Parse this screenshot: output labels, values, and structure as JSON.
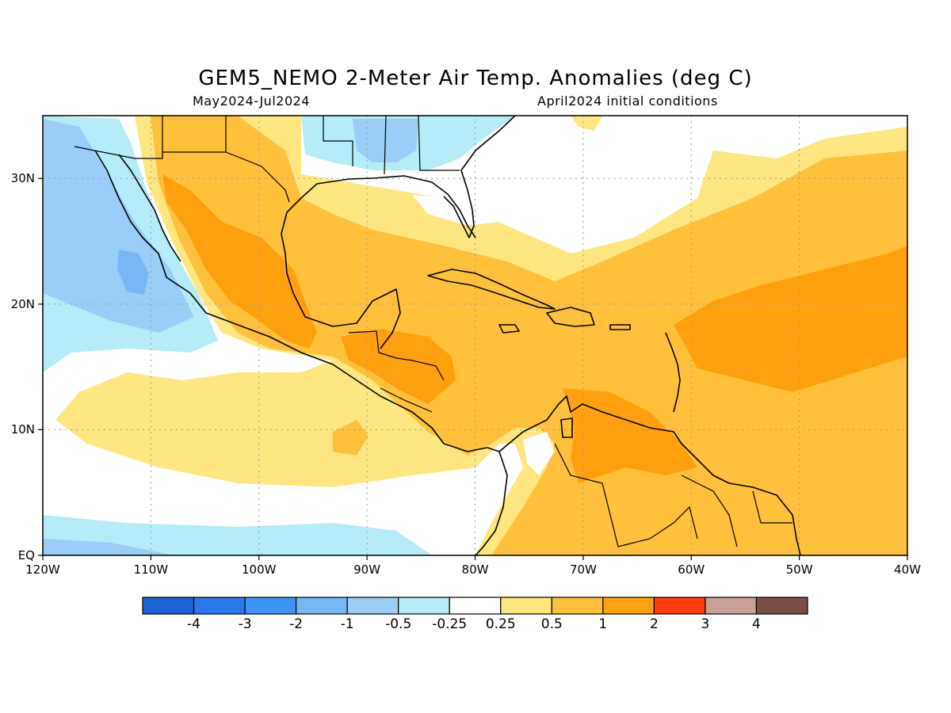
{
  "title": "GEM5_NEMO 2-Meter Air Temp. Anomalies (deg C)",
  "subtitle_left": "May2024-Jul2024",
  "subtitle_right": "April2024 initial conditions",
  "map": {
    "lon_range": [
      -120,
      -40
    ],
    "lat_range": [
      0,
      35
    ],
    "lon_ticks": [
      "120W",
      "110W",
      "100W",
      "90W",
      "80W",
      "70W",
      "60W",
      "50W",
      "40W"
    ],
    "lat_ticks": [
      "EQ",
      "10N",
      "20N",
      "30N"
    ],
    "grid": "dotted"
  },
  "colorbar": {
    "labels": [
      "-4",
      "-3",
      "-2",
      "-1",
      "-0.5",
      "-0.25",
      "0.25",
      "0.5",
      "1",
      "2",
      "3",
      "4"
    ],
    "colors": [
      "#1c63d6",
      "#2a79ea",
      "#3d94f2",
      "#77b6f4",
      "#9acdf7",
      "#b4ecf8",
      "#ffffff",
      "#ffe680",
      "#ffc13c",
      "#ffa00e",
      "#ff3c10",
      "#c8a096",
      "#7a4e46"
    ]
  }
}
